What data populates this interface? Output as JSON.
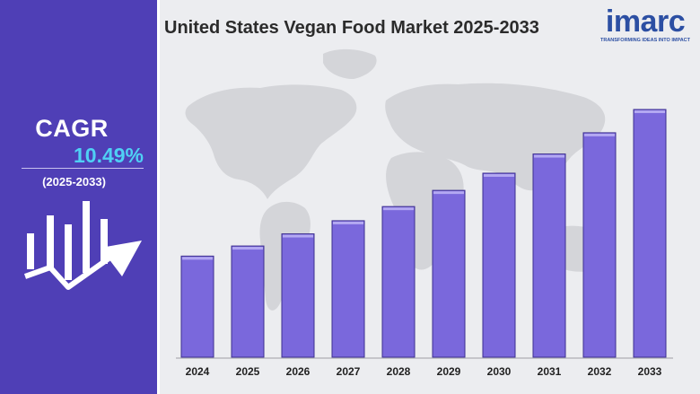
{
  "header": {
    "title": "United States Vegan Food Market 2025-2033"
  },
  "brand": {
    "name": "imarc",
    "tagline": "TRANSFORMING IDEAS INTO IMPACT"
  },
  "cagr": {
    "label": "CAGR",
    "value": "10.49%",
    "period": "(2025-2033)"
  },
  "colors": {
    "panel": "#4f3fb6",
    "accent": "#4fd0f4",
    "bar": "#7a68dc",
    "bar_top": "#b3a8f2",
    "map": "#d4d5d9",
    "brand": "#2c4fa3"
  },
  "icons": [
    "bar-growth-icon",
    "trend-arrow-icon",
    "world-map"
  ],
  "chart_data": {
    "type": "bar",
    "categories": [
      "2024",
      "2025",
      "2026",
      "2027",
      "2028",
      "2029",
      "2030",
      "2031",
      "2032",
      "2033"
    ],
    "values": [
      1.0,
      1.1,
      1.22,
      1.35,
      1.49,
      1.65,
      1.82,
      2.01,
      2.22,
      2.45
    ],
    "grid": false,
    "legend": "none",
    "value_labels": false,
    "y_axis": "hidden"
  }
}
